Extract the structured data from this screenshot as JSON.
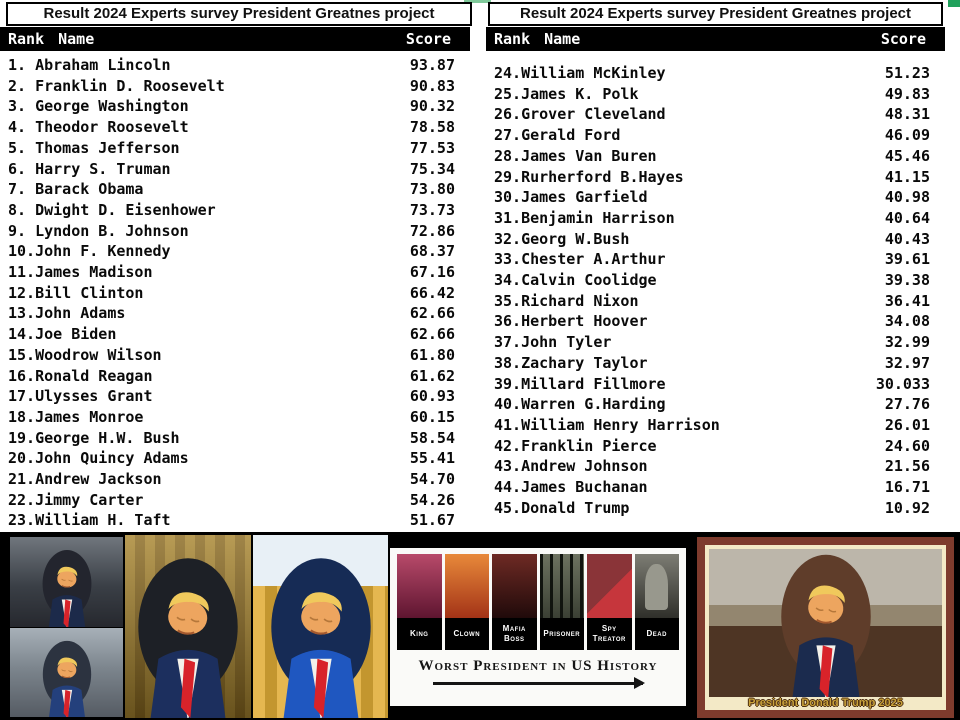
{
  "panels": [
    {
      "title": "Result 2024 Experts survey President Greatnes project",
      "columns": {
        "rank": "Rank",
        "name": "Name",
        "score": "Score"
      },
      "rows": [
        {
          "rank": "1.",
          "name": "Abraham Lincoln",
          "score": "93.87"
        },
        {
          "rank": "2.",
          "name": "Franklin D. Roosevelt",
          "score": "90.83"
        },
        {
          "rank": "3.",
          "name": "George Washington",
          "score": "90.32"
        },
        {
          "rank": "4.",
          "name": "Theodor Roosevelt",
          "score": "78.58"
        },
        {
          "rank": "5.",
          "name": "Thomas Jefferson",
          "score": "77.53"
        },
        {
          "rank": "6.",
          "name": "Harry S. Truman",
          "score": "75.34"
        },
        {
          "rank": "7.",
          "name": "Barack Obama",
          "score": "73.80"
        },
        {
          "rank": "8.",
          "name": "Dwight D. Eisenhower",
          "score": "73.73"
        },
        {
          "rank": "9.",
          "name": "Lyndon B. Johnson",
          "score": "72.86"
        },
        {
          "rank": "10.",
          "name": "John F. Kennedy",
          "score": "68.37"
        },
        {
          "rank": "11.",
          "name": "James Madison",
          "score": "67.16"
        },
        {
          "rank": "12.",
          "name": "Bill Clinton",
          "score": "66.42"
        },
        {
          "rank": "13.",
          "name": "John Adams",
          "score": "62.66"
        },
        {
          "rank": "14.",
          "name": "Joe Biden",
          "score": "62.66"
        },
        {
          "rank": "15.",
          "name": "Woodrow Wilson",
          "score": "61.80"
        },
        {
          "rank": "16.",
          "name": "Ronald Reagan",
          "score": "61.62"
        },
        {
          "rank": "17.",
          "name": "Ulysses Grant",
          "score": "60.93"
        },
        {
          "rank": "18.",
          "name": "James Monroe",
          "score": "60.15"
        },
        {
          "rank": "19.",
          "name": "George H.W. Bush",
          "score": "58.54"
        },
        {
          "rank": "20.",
          "name": "John Quincy Adams",
          "score": "55.41"
        },
        {
          "rank": "21.",
          "name": "Andrew Jackson",
          "score": "54.70"
        },
        {
          "rank": "22.",
          "name": "Jimmy Carter",
          "score": "54.26"
        },
        {
          "rank": "23.",
          "name": "William H. Taft",
          "score": "51.67"
        }
      ]
    },
    {
      "title": "Result 2024 Experts survey President Greatnes project",
      "columns": {
        "rank": "Rank",
        "name": "Name",
        "score": "Score"
      },
      "rows": [
        {
          "rank": "24.",
          "name": "William McKinley",
          "score": "51.23"
        },
        {
          "rank": "25.",
          "name": "James K. Polk",
          "score": "49.83"
        },
        {
          "rank": "26.",
          "name": "Grover Cleveland",
          "score": "48.31"
        },
        {
          "rank": "27.",
          "name": "Gerald Ford",
          "score": "46.09"
        },
        {
          "rank": "28.",
          "name": "James Van Buren",
          "score": "45.46"
        },
        {
          "rank": "29.",
          "name": "Rurherford B.Hayes",
          "score": "41.15"
        },
        {
          "rank": "30.",
          "name": "James Garfield",
          "score": "40.98"
        },
        {
          "rank": "31.",
          "name": "Benjamin Harrison",
          "score": "40.64"
        },
        {
          "rank": "32.",
          "name": "Georg W.Bush",
          "score": "40.43"
        },
        {
          "rank": "33.",
          "name": "Chester A.Arthur",
          "score": "39.61"
        },
        {
          "rank": "34.",
          "name": "Calvin Coolidge",
          "score": "39.38"
        },
        {
          "rank": "35.",
          "name": "Richard Nixon",
          "score": "36.41"
        },
        {
          "rank": "36.",
          "name": "Herbert Hoover",
          "score": "34.08"
        },
        {
          "rank": "37.",
          "name": "John Tyler",
          "score": "32.99"
        },
        {
          "rank": "38.",
          "name": "Zachary Taylor",
          "score": "32.97"
        },
        {
          "rank": "39.",
          "name": "Millard Fillmore",
          "score": "30.033"
        },
        {
          "rank": "40.",
          "name": "Warren G.Harding",
          "score": "27.76"
        },
        {
          "rank": "41.",
          "name": "William Henry Harrison",
          "score": "26.01"
        },
        {
          "rank": "42.",
          "name": "Franklin Pierce",
          "score": "24.60"
        },
        {
          "rank": "43.",
          "name": "Andrew Johnson",
          "score": "21.56"
        },
        {
          "rank": "44.",
          "name": "James Buchanan",
          "score": "16.71"
        },
        {
          "rank": "45.",
          "name": "Donald Trump",
          "score": "10.92"
        }
      ]
    }
  ],
  "bottom": {
    "meme": {
      "tiles": [
        {
          "label": "King"
        },
        {
          "label": "Clown"
        },
        {
          "label": "Mafia Boss"
        },
        {
          "label": "Prisoner"
        },
        {
          "label": "Spy Treator"
        },
        {
          "label": "Dead"
        }
      ],
      "title": "Worst President in US History"
    },
    "framed": {
      "caption": "President Donald Trump 2025"
    }
  },
  "colors": {
    "header_bg": "#000000",
    "header_text": "#ffffff",
    "green_mark": "#21a15c",
    "green_strip": "#7fc99a",
    "strip_bg": "#000000",
    "frame_outer": "#7e3b2d",
    "frame_matte": "#f3e9c6",
    "caption_gold": "#c9a23b",
    "tie_red": "#d8232a",
    "hair_gold": "#f0c95c",
    "skin": "#eda55f"
  }
}
